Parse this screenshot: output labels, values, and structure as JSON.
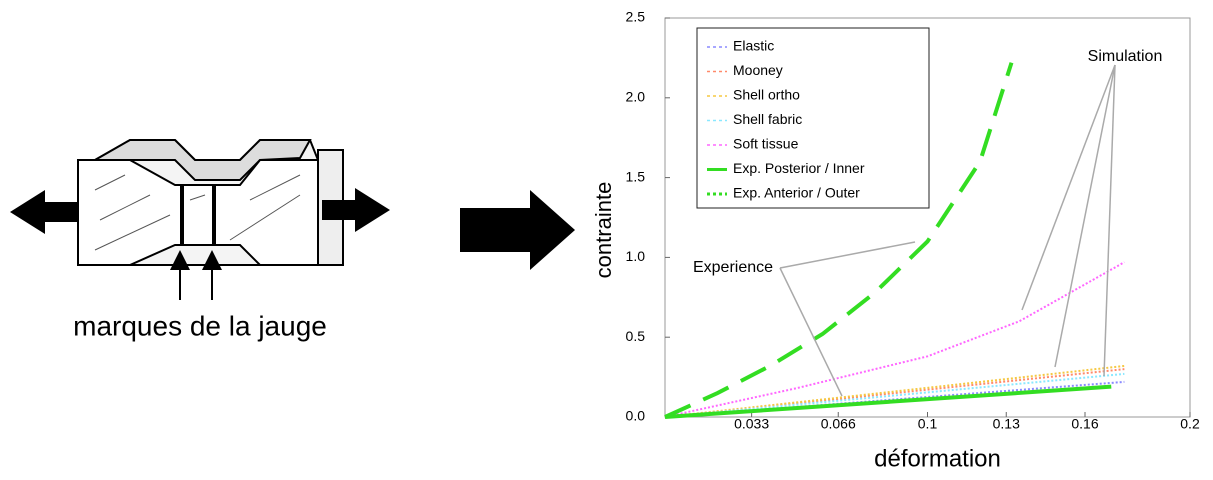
{
  "caption": "marques de la jauge",
  "chart_data": {
    "type": "line",
    "xlabel": "déformation",
    "ylabel": "contrainte",
    "xlim": [
      0,
      0.2
    ],
    "ylim": [
      0,
      2.5
    ],
    "xticks": [
      0.033,
      0.066,
      0.1,
      0.13,
      0.16,
      0.2
    ],
    "yticks": [
      {
        "value": 0,
        "label": "0.0"
      },
      {
        "value": 0.5,
        "label": "0.5"
      },
      {
        "value": 1,
        "label": "1.0"
      },
      {
        "value": 1.5,
        "label": "1.5"
      },
      {
        "value": 2,
        "label": "2.0"
      },
      {
        "value": 2.5,
        "label": "2.5"
      }
    ],
    "legend": "upper left",
    "annotations": [
      "Simulation",
      "Experience"
    ],
    "series": [
      {
        "name": "Elastic",
        "color": "#8a8aff",
        "style": "dotted",
        "x": [
          0,
          0.175
        ],
        "values": [
          0,
          0.22
        ]
      },
      {
        "name": "Mooney",
        "color": "#ff8a6a",
        "style": "dotted",
        "x": [
          0,
          0.175
        ],
        "values": [
          0,
          0.3
        ]
      },
      {
        "name": "Shell ortho",
        "color": "#f5c842",
        "style": "dotted",
        "x": [
          0,
          0.175
        ],
        "values": [
          0,
          0.32
        ]
      },
      {
        "name": "Shell fabric",
        "color": "#8ae8ff",
        "style": "dotted",
        "x": [
          0,
          0.175
        ],
        "values": [
          0,
          0.27
        ]
      },
      {
        "name": "Soft tissue",
        "color": "#ff66ff",
        "style": "dotted",
        "x": [
          0,
          0.05,
          0.1,
          0.135,
          0.175
        ],
        "values": [
          0,
          0.18,
          0.38,
          0.6,
          0.97
        ]
      },
      {
        "name": "Exp. Posterior / Inner",
        "color": "#33dd22",
        "style": "solid",
        "x": [
          0,
          0.17
        ],
        "values": [
          0,
          0.19
        ]
      },
      {
        "name": "Exp. Anterior / Outer",
        "color": "#33dd22",
        "style": "dashed",
        "x": [
          0,
          0.02,
          0.04,
          0.06,
          0.08,
          0.1,
          0.12,
          0.132
        ],
        "values": [
          0,
          0.15,
          0.32,
          0.52,
          0.78,
          1.1,
          1.6,
          2.22
        ]
      }
    ]
  }
}
